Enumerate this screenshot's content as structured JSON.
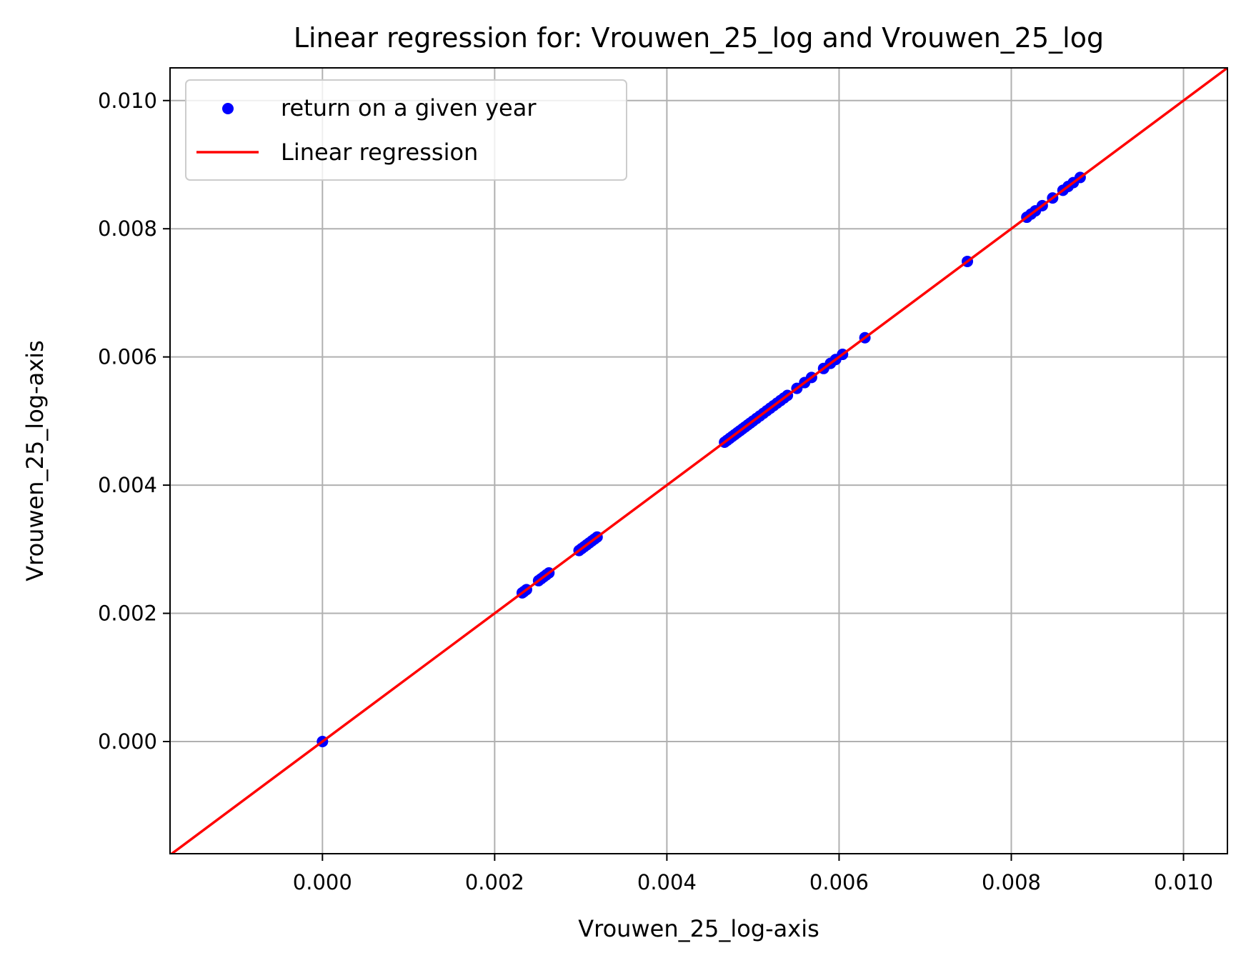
{
  "chart_data": {
    "type": "scatter",
    "title": "Linear regression for: Vrouwen_25_log and Vrouwen_25_log",
    "xlabel": "Vrouwen_25_log-axis",
    "ylabel": "Vrouwen_25_log-axis",
    "xlim": [
      -0.00177,
      0.01051
    ],
    "ylim": [
      -0.00175,
      0.01051
    ],
    "x_ticks": [
      "0.000",
      "0.002",
      "0.004",
      "0.006",
      "0.008",
      "0.010"
    ],
    "x_tick_values": [
      0.0,
      0.002,
      0.004,
      0.006,
      0.008,
      0.01
    ],
    "y_ticks": [
      "0.000",
      "0.002",
      "0.004",
      "0.006",
      "0.008",
      "0.010"
    ],
    "y_tick_values": [
      0.0,
      0.002,
      0.004,
      0.006,
      0.008,
      0.01
    ],
    "grid": true,
    "legend_position": "top-left",
    "series": [
      {
        "name": "return on a given year",
        "kind": "scatter",
        "color": "#0000ff",
        "points": [
          [
            0.0,
            0.0
          ],
          [
            0.00232,
            0.00232
          ],
          [
            0.00234,
            0.00234
          ],
          [
            0.00237,
            0.00237
          ],
          [
            0.00251,
            0.00251
          ],
          [
            0.00254,
            0.00254
          ],
          [
            0.00257,
            0.00257
          ],
          [
            0.0026,
            0.0026
          ],
          [
            0.00263,
            0.00263
          ],
          [
            0.00298,
            0.00298
          ],
          [
            0.00301,
            0.00301
          ],
          [
            0.00304,
            0.00304
          ],
          [
            0.00307,
            0.00307
          ],
          [
            0.0031,
            0.0031
          ],
          [
            0.00313,
            0.00313
          ],
          [
            0.00316,
            0.00316
          ],
          [
            0.00319,
            0.00319
          ],
          [
            0.00467,
            0.00467
          ],
          [
            0.0047,
            0.0047
          ],
          [
            0.00473,
            0.00473
          ],
          [
            0.00476,
            0.00476
          ],
          [
            0.00479,
            0.00479
          ],
          [
            0.00482,
            0.00482
          ],
          [
            0.00485,
            0.00485
          ],
          [
            0.00488,
            0.00488
          ],
          [
            0.00491,
            0.00491
          ],
          [
            0.00494,
            0.00494
          ],
          [
            0.00497,
            0.00497
          ],
          [
            0.005,
            0.005
          ],
          [
            0.00504,
            0.00504
          ],
          [
            0.00508,
            0.00508
          ],
          [
            0.00512,
            0.00512
          ],
          [
            0.00516,
            0.00516
          ],
          [
            0.0052,
            0.0052
          ],
          [
            0.00524,
            0.00524
          ],
          [
            0.00528,
            0.00528
          ],
          [
            0.00532,
            0.00532
          ],
          [
            0.00536,
            0.00536
          ],
          [
            0.0054,
            0.0054
          ],
          [
            0.00551,
            0.00551
          ],
          [
            0.0056,
            0.0056
          ],
          [
            0.00568,
            0.00568
          ],
          [
            0.00582,
            0.00582
          ],
          [
            0.0059,
            0.0059
          ],
          [
            0.00596,
            0.00596
          ],
          [
            0.00604,
            0.00604
          ],
          [
            0.0063,
            0.0063
          ],
          [
            0.00749,
            0.00749
          ],
          [
            0.00818,
            0.00818
          ],
          [
            0.00823,
            0.00823
          ],
          [
            0.00828,
            0.00828
          ],
          [
            0.00836,
            0.00836
          ],
          [
            0.00848,
            0.00848
          ],
          [
            0.0086,
            0.0086
          ],
          [
            0.00866,
            0.00866
          ],
          [
            0.00872,
            0.00872
          ],
          [
            0.0088,
            0.0088
          ]
        ]
      },
      {
        "name": "Linear regression",
        "kind": "line",
        "color": "#ff0000",
        "slope": 1.0,
        "intercept": 0.0
      }
    ]
  }
}
